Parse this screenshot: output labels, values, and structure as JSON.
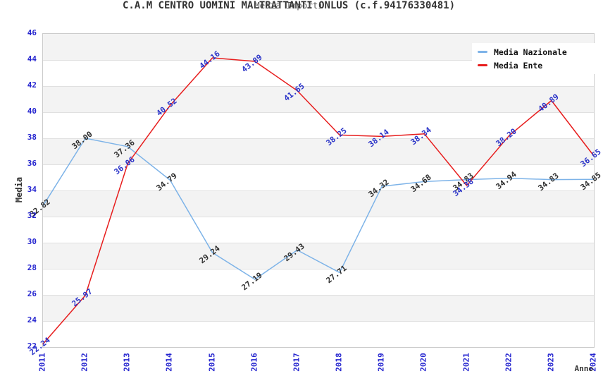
{
  "header": {
    "title": "C.A.M CENTRO UOMINI MALTRATTANTI ONLUS (c.f.94176330481)",
    "subtitle": "Media Importi"
  },
  "chart_data": {
    "type": "line",
    "x": [
      2011,
      2012,
      2013,
      2014,
      2015,
      2016,
      2017,
      2018,
      2019,
      2020,
      2021,
      2022,
      2023,
      2024
    ],
    "series": [
      {
        "name": "Media Nazionale",
        "color": "#7db3e8",
        "label_color": "#2e2e2e",
        "values": [
          32.82,
          38.0,
          37.36,
          34.79,
          29.24,
          27.19,
          29.43,
          27.71,
          34.32,
          34.68,
          34.83,
          34.94,
          34.83,
          34.85
        ]
      },
      {
        "name": "Media Ente",
        "color": "#e71d1d",
        "label_color": "#2a33c8",
        "values": [
          22.24,
          25.97,
          36.06,
          40.52,
          44.16,
          43.89,
          41.65,
          38.25,
          38.14,
          38.34,
          34.38,
          38.2,
          40.89,
          36.65
        ]
      }
    ],
    "xlabel": "Anno",
    "ylabel": "Media",
    "ylim": [
      22,
      46
    ],
    "ytick_step": 2,
    "grid": "horizontal-bands",
    "legend_position": "top-right",
    "colors": {
      "tick_label": "#2525cf",
      "band_gray": "#f3f3f3",
      "gridline": "#e0e0e0"
    }
  }
}
